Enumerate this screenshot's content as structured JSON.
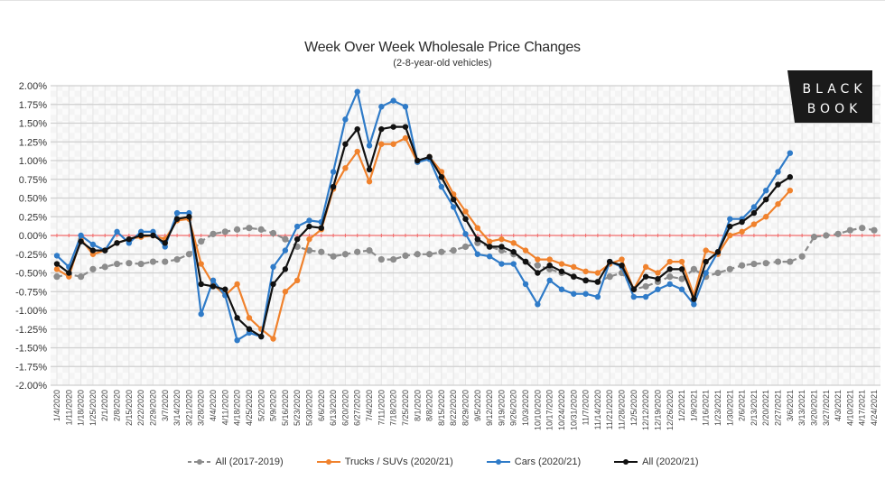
{
  "chart_data": {
    "type": "line",
    "title": "Week Over Week Wholesale Price Changes",
    "subtitle": "(2-8-year-old vehicles)",
    "xlabel": "",
    "ylabel": "",
    "ylim": [
      -2.0,
      2.0
    ],
    "yticks": [
      "2.00%",
      "1.75%",
      "1.50%",
      "1.25%",
      "1.00%",
      "0.75%",
      "0.50%",
      "0.25%",
      "0.00%",
      "-0.25%",
      "-0.50%",
      "-0.75%",
      "-1.00%",
      "-1.25%",
      "-1.50%",
      "-1.75%",
      "-2.00%"
    ],
    "ytick_values": [
      2.0,
      1.75,
      1.5,
      1.25,
      1.0,
      0.75,
      0.5,
      0.25,
      0.0,
      -0.25,
      -0.5,
      -0.75,
      -1.0,
      -1.25,
      -1.5,
      -1.75,
      -2.0
    ],
    "grid": true,
    "zero_line_color": "#f26b6b",
    "legend_position": "bottom",
    "categories": [
      "1/4/2020",
      "1/11/2020",
      "1/18/2020",
      "1/25/2020",
      "2/1/2020",
      "2/8/2020",
      "2/15/2020",
      "2/22/2020",
      "2/29/2020",
      "3/7/2020",
      "3/14/2020",
      "3/21/2020",
      "3/28/2020",
      "4/4/2020",
      "4/11/2020",
      "4/18/2020",
      "4/25/2020",
      "5/2/2020",
      "5/9/2020",
      "5/16/2020",
      "5/23/2020",
      "5/30/2020",
      "6/6/2020",
      "6/13/2020",
      "6/20/2020",
      "6/27/2020",
      "7/4/2020",
      "7/11/2020",
      "7/18/2020",
      "7/25/2020",
      "8/1/2020",
      "8/8/2020",
      "8/15/2020",
      "8/22/2020",
      "8/29/2020",
      "9/5/2020",
      "9/12/2020",
      "9/19/2020",
      "9/26/2020",
      "10/3/2020",
      "10/10/2020",
      "10/17/2020",
      "10/24/2020",
      "10/31/2020",
      "11/7/2020",
      "11/14/2020",
      "11/21/2020",
      "11/28/2020",
      "12/5/2020",
      "12/12/2020",
      "12/19/2020",
      "12/26/2020",
      "1/2/2021",
      "1/9/2021",
      "1/16/2021",
      "1/23/2021",
      "1/30/2021",
      "2/6/2021",
      "2/13/2021",
      "2/20/2021",
      "2/27/2021",
      "3/6/2021",
      "3/13/2021",
      "3/20/2021",
      "3/27/2021",
      "4/3/2021",
      "4/10/2021",
      "4/17/2021",
      "4/24/2021"
    ],
    "series": [
      {
        "name": "All (2017-2019)",
        "color": "#8c8c8c",
        "dashed": true,
        "values": [
          -0.55,
          -0.52,
          -0.55,
          -0.45,
          -0.42,
          -0.38,
          -0.37,
          -0.38,
          -0.35,
          -0.35,
          -0.32,
          -0.25,
          -0.08,
          0.02,
          0.05,
          0.08,
          0.1,
          0.08,
          0.03,
          -0.05,
          -0.15,
          -0.2,
          -0.22,
          -0.28,
          -0.25,
          -0.22,
          -0.2,
          -0.32,
          -0.32,
          -0.27,
          -0.25,
          -0.25,
          -0.22,
          -0.2,
          -0.15,
          -0.1,
          -0.15,
          -0.2,
          -0.25,
          -0.35,
          -0.4,
          -0.45,
          -0.5,
          -0.55,
          -0.6,
          -0.62,
          -0.55,
          -0.5,
          -0.72,
          -0.68,
          -0.62,
          -0.55,
          -0.58,
          -0.45,
          -0.55,
          -0.5,
          -0.45,
          -0.4,
          -0.38,
          -0.37,
          -0.35,
          -0.35,
          -0.28,
          -0.02,
          0.0,
          0.02,
          0.07,
          0.1,
          0.07
        ]
      },
      {
        "name": "Trucks / SUVs (2020/21)",
        "color": "#f0822d",
        "dashed": false,
        "values": [
          -0.45,
          -0.55,
          -0.05,
          -0.25,
          -0.2,
          -0.1,
          -0.05,
          -0.02,
          0.0,
          -0.05,
          0.2,
          0.22,
          -0.38,
          -0.65,
          -0.8,
          -0.65,
          -1.1,
          -1.25,
          -1.38,
          -0.75,
          -0.6,
          -0.05,
          0.08,
          0.62,
          0.9,
          1.12,
          0.72,
          1.22,
          1.22,
          1.3,
          0.98,
          1.05,
          0.85,
          0.55,
          0.32,
          0.1,
          -0.08,
          -0.05,
          -0.1,
          -0.2,
          -0.32,
          -0.32,
          -0.38,
          -0.42,
          -0.48,
          -0.5,
          -0.38,
          -0.32,
          -0.72,
          -0.42,
          -0.5,
          -0.35,
          -0.35,
          -0.8,
          -0.2,
          -0.25,
          0.0,
          0.05,
          0.15,
          0.25,
          0.42,
          0.6,
          null,
          null,
          null,
          null,
          null,
          null,
          null
        ]
      },
      {
        "name": "Cars (2020/21)",
        "color": "#2f7bc8",
        "dashed": false,
        "values": [
          -0.27,
          -0.42,
          0.0,
          -0.12,
          -0.2,
          0.05,
          -0.1,
          0.05,
          0.05,
          -0.15,
          0.3,
          0.3,
          -1.05,
          -0.6,
          -0.8,
          -1.4,
          -1.3,
          -1.35,
          -0.42,
          -0.2,
          0.12,
          0.2,
          0.18,
          0.85,
          1.55,
          1.92,
          1.2,
          1.72,
          1.8,
          1.72,
          0.98,
          1.02,
          0.65,
          0.38,
          0.02,
          -0.25,
          -0.28,
          -0.38,
          -0.38,
          -0.65,
          -0.92,
          -0.6,
          -0.72,
          -0.78,
          -0.78,
          -0.82,
          -0.35,
          -0.42,
          -0.82,
          -0.82,
          -0.72,
          -0.65,
          -0.72,
          -0.92,
          -0.5,
          -0.22,
          0.22,
          0.22,
          0.38,
          0.6,
          0.85,
          1.1,
          null,
          null,
          null,
          null,
          null,
          null,
          null
        ]
      },
      {
        "name": "All (2020/21)",
        "color": "#111111",
        "dashed": false,
        "values": [
          -0.38,
          -0.5,
          -0.08,
          -0.2,
          -0.2,
          -0.1,
          -0.05,
          0.0,
          0.0,
          -0.1,
          0.22,
          0.25,
          -0.65,
          -0.68,
          -0.72,
          -1.1,
          -1.25,
          -1.35,
          -0.65,
          -0.45,
          -0.05,
          0.12,
          0.1,
          0.65,
          1.22,
          1.42,
          0.88,
          1.42,
          1.45,
          1.45,
          1.0,
          1.05,
          0.78,
          0.48,
          0.22,
          -0.05,
          -0.15,
          -0.15,
          -0.22,
          -0.35,
          -0.5,
          -0.4,
          -0.48,
          -0.55,
          -0.6,
          -0.62,
          -0.35,
          -0.4,
          -0.72,
          -0.55,
          -0.58,
          -0.45,
          -0.45,
          -0.85,
          -0.35,
          -0.22,
          0.12,
          0.18,
          0.3,
          0.48,
          0.68,
          0.78,
          null,
          null,
          null,
          null,
          null,
          null,
          null
        ]
      }
    ]
  },
  "logo": {
    "line1": "BLACK",
    "line2": "BOOK"
  },
  "legend": [
    {
      "label": "All (2017-2019)",
      "color": "#8c8c8c",
      "dashed": true
    },
    {
      "label": "Trucks / SUVs (2020/21)",
      "color": "#f0822d",
      "dashed": false
    },
    {
      "label": "Cars (2020/21)",
      "color": "#2f7bc8",
      "dashed": false
    },
    {
      "label": "All (2020/21)",
      "color": "#111111",
      "dashed": false
    }
  ]
}
